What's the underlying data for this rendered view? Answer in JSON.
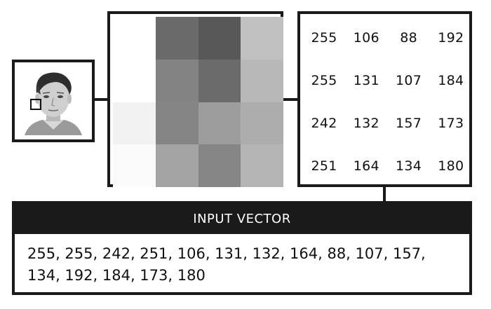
{
  "pixel_grid": {
    "rows": [
      [
        255,
        106,
        88,
        192
      ],
      [
        255,
        131,
        107,
        184
      ],
      [
        242,
        132,
        157,
        173
      ],
      [
        251,
        164,
        134,
        180
      ]
    ]
  },
  "vector": {
    "header": "INPUT VECTOR",
    "values_text": "255, 255, 242, 251, 106, 131, 132, 164, 88, 107, 157, 134, 192, 184, 173, 180"
  }
}
